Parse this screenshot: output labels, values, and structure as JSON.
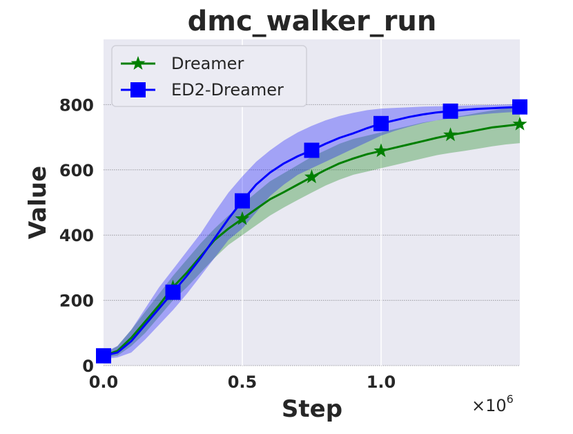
{
  "chart_data": {
    "type": "line",
    "title": "dmc_walker_run",
    "xlabel": "Step",
    "ylabel": "Value",
    "x_offset_label": "×10",
    "x_offset_exponent": "6",
    "xlim": [
      0,
      1.5
    ],
    "ylim": [
      0,
      1000
    ],
    "x_ticks": [
      0.0,
      0.5,
      1.0
    ],
    "x_tick_labels": [
      "0.0",
      "0.5",
      "1.0"
    ],
    "y_ticks": [
      0,
      200,
      400,
      600,
      800
    ],
    "y_tick_labels": [
      "0",
      "200",
      "400",
      "600",
      "800"
    ],
    "grid": true,
    "legend_position": "top-left",
    "background_color": "#e9e9f2",
    "x": [
      0,
      0.05,
      0.1,
      0.15,
      0.2,
      0.25,
      0.3,
      0.35,
      0.4,
      0.45,
      0.5,
      0.55,
      0.6,
      0.65,
      0.7,
      0.75,
      0.8,
      0.85,
      0.9,
      0.95,
      1.0,
      1.05,
      1.1,
      1.15,
      1.2,
      1.25,
      1.3,
      1.35,
      1.4,
      1.45,
      1.5
    ],
    "series": [
      {
        "name": "Dreamer",
        "color": "#007f00",
        "marker": "star",
        "values": [
          30,
          45,
          85,
          135,
          185,
          240,
          285,
          335,
          385,
          420,
          450,
          480,
          510,
          532,
          555,
          578,
          600,
          620,
          635,
          648,
          658,
          668,
          678,
          688,
          698,
          707,
          714,
          722,
          730,
          735,
          740
        ],
        "lower": [
          25,
          30,
          60,
          100,
          150,
          200,
          240,
          285,
          330,
          370,
          400,
          430,
          460,
          485,
          508,
          530,
          552,
          570,
          585,
          595,
          605,
          615,
          625,
          635,
          645,
          652,
          658,
          665,
          672,
          678,
          682
        ],
        "upper": [
          35,
          60,
          110,
          165,
          220,
          275,
          325,
          375,
          420,
          460,
          495,
          530,
          565,
          590,
          615,
          640,
          660,
          680,
          695,
          705,
          715,
          725,
          735,
          745,
          752,
          760,
          767,
          775,
          782,
          788,
          793
        ],
        "marker_x": [
          0,
          0.25,
          0.5,
          0.75,
          1.0,
          1.25,
          1.5
        ],
        "marker_y": [
          30,
          240,
          450,
          578,
          658,
          707,
          740
        ]
      },
      {
        "name": "ED2-Dreamer",
        "color": "#0000ff",
        "marker": "square",
        "values": [
          30,
          40,
          75,
          125,
          175,
          225,
          275,
          330,
          390,
          450,
          505,
          555,
          592,
          620,
          642,
          660,
          680,
          698,
          712,
          728,
          742,
          752,
          762,
          770,
          776,
          780,
          784,
          787,
          789,
          791,
          793
        ],
        "lower": [
          20,
          25,
          40,
          80,
          125,
          170,
          220,
          275,
          330,
          385,
          420,
          470,
          520,
          555,
          585,
          605,
          625,
          645,
          665,
          685,
          705,
          720,
          732,
          743,
          752,
          758,
          764,
          769,
          773,
          776,
          778
        ],
        "upper": [
          40,
          60,
          110,
          175,
          240,
          295,
          350,
          405,
          470,
          530,
          580,
          625,
          660,
          690,
          715,
          735,
          752,
          765,
          775,
          783,
          788,
          790,
          792,
          794,
          795,
          796,
          797,
          798,
          799,
          800,
          802
        ],
        "marker_x": [
          0,
          0.25,
          0.5,
          0.75,
          1.0,
          1.25,
          1.5
        ],
        "marker_y": [
          30,
          225,
          505,
          660,
          742,
          780,
          793
        ]
      }
    ]
  }
}
